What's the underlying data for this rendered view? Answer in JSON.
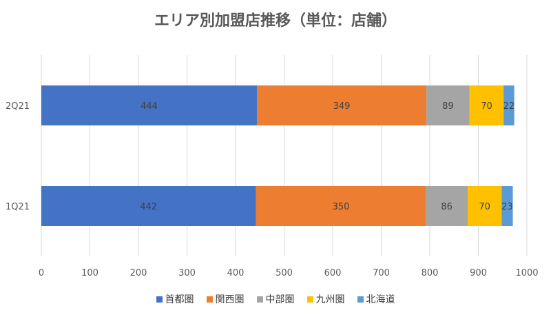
{
  "chart_data": {
    "type": "bar",
    "orientation": "horizontal",
    "stacked": true,
    "title": "エリア別加盟店推移（単位：店舗）",
    "categories": [
      "2Q21",
      "1Q21"
    ],
    "series": [
      {
        "name": "首都圏",
        "color": "#4472C4",
        "values": [
          444,
          442
        ]
      },
      {
        "name": "関西圏",
        "color": "#ED7D31",
        "values": [
          349,
          350
        ]
      },
      {
        "name": "中部圏",
        "color": "#A5A5A5",
        "values": [
          89,
          86
        ]
      },
      {
        "name": "九州圏",
        "color": "#FFC000",
        "values": [
          70,
          70
        ]
      },
      {
        "name": "北海道",
        "color": "#5B9BD5",
        "values": [
          22,
          23
        ]
      }
    ],
    "xlim": [
      0,
      1000
    ],
    "xticks": [
      0,
      100,
      200,
      300,
      400,
      500,
      600,
      700,
      800,
      900,
      1000
    ],
    "grid": true,
    "legend_position": "bottom",
    "data_labels": true
  }
}
